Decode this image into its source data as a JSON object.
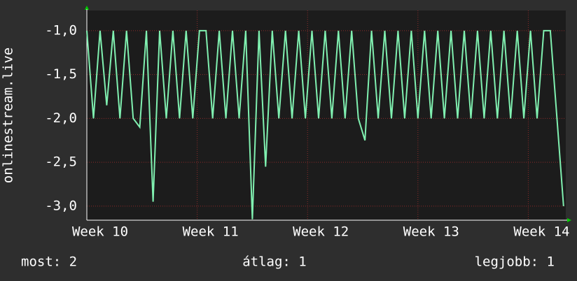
{
  "chart_data": {
    "type": "line",
    "ylabel": "onlinestream.live",
    "x": [
      10.0,
      10.06,
      10.12,
      10.18,
      10.24,
      10.3,
      10.36,
      10.42,
      10.48,
      10.54,
      10.6,
      10.66,
      10.72,
      10.78,
      10.84,
      10.9,
      10.96,
      11.02,
      11.08,
      11.14,
      11.2,
      11.26,
      11.32,
      11.38,
      11.44,
      11.5,
      11.56,
      11.62,
      11.68,
      11.74,
      11.8,
      11.86,
      11.92,
      11.98,
      12.04,
      12.1,
      12.16,
      12.22,
      12.28,
      12.34,
      12.4,
      12.46,
      12.52,
      12.58,
      12.64,
      12.7,
      12.76,
      12.82,
      12.88,
      12.94,
      13.0,
      13.06,
      13.12,
      13.18,
      13.24,
      13.3,
      13.36,
      13.42,
      13.48,
      13.54,
      13.6,
      13.66,
      13.72,
      13.78,
      13.84,
      13.9,
      13.96,
      14.02,
      14.08,
      14.14,
      14.2,
      14.26,
      14.32
    ],
    "series": [
      {
        "color": "#80f0b0",
        "values": [
          -1,
          -2,
          -1,
          -1.85,
          -1,
          -2,
          -1,
          -2,
          -2.1,
          -1,
          -2.95,
          -1,
          -2,
          -1,
          -2,
          -1,
          -2,
          -1,
          -1,
          -2,
          -1,
          -2,
          -1,
          -2,
          -1,
          -3.15,
          -1,
          -2.55,
          -1,
          -2,
          -1,
          -2,
          -1,
          -2,
          -1,
          -2,
          -1,
          -2,
          -1,
          -2,
          -1,
          -2,
          -2.25,
          -1,
          -2,
          -1,
          -2,
          -1,
          -2,
          -1,
          -2,
          -1,
          -2,
          -1,
          -2,
          -1,
          -2,
          -1,
          -2,
          -1,
          -2,
          -1,
          -2,
          -1,
          -2,
          -1,
          -2,
          -1,
          -2,
          -1,
          -1,
          -2,
          -3.0
        ]
      }
    ],
    "xlim": [
      10,
      14.34
    ],
    "xticks": [
      {
        "value": 10,
        "label": "Week 10"
      },
      {
        "value": 11,
        "label": "Week 11"
      },
      {
        "value": 12,
        "label": "Week 12"
      },
      {
        "value": 13,
        "label": "Week 13"
      },
      {
        "value": 14,
        "label": "Week 14"
      }
    ],
    "ylim": [
      -3.16,
      -0.77
    ],
    "yticks": [
      {
        "value": -3,
        "label": "-3,0"
      },
      {
        "value": -2.5,
        "label": "-2,5"
      },
      {
        "value": -2,
        "label": "-2,0"
      },
      {
        "value": -1.5,
        "label": "-1,5"
      },
      {
        "value": -1,
        "label": "-1,0"
      }
    ],
    "grid": true,
    "footer": [
      "most: 2",
      "átlag: 1",
      "legjobb: 1"
    ]
  }
}
